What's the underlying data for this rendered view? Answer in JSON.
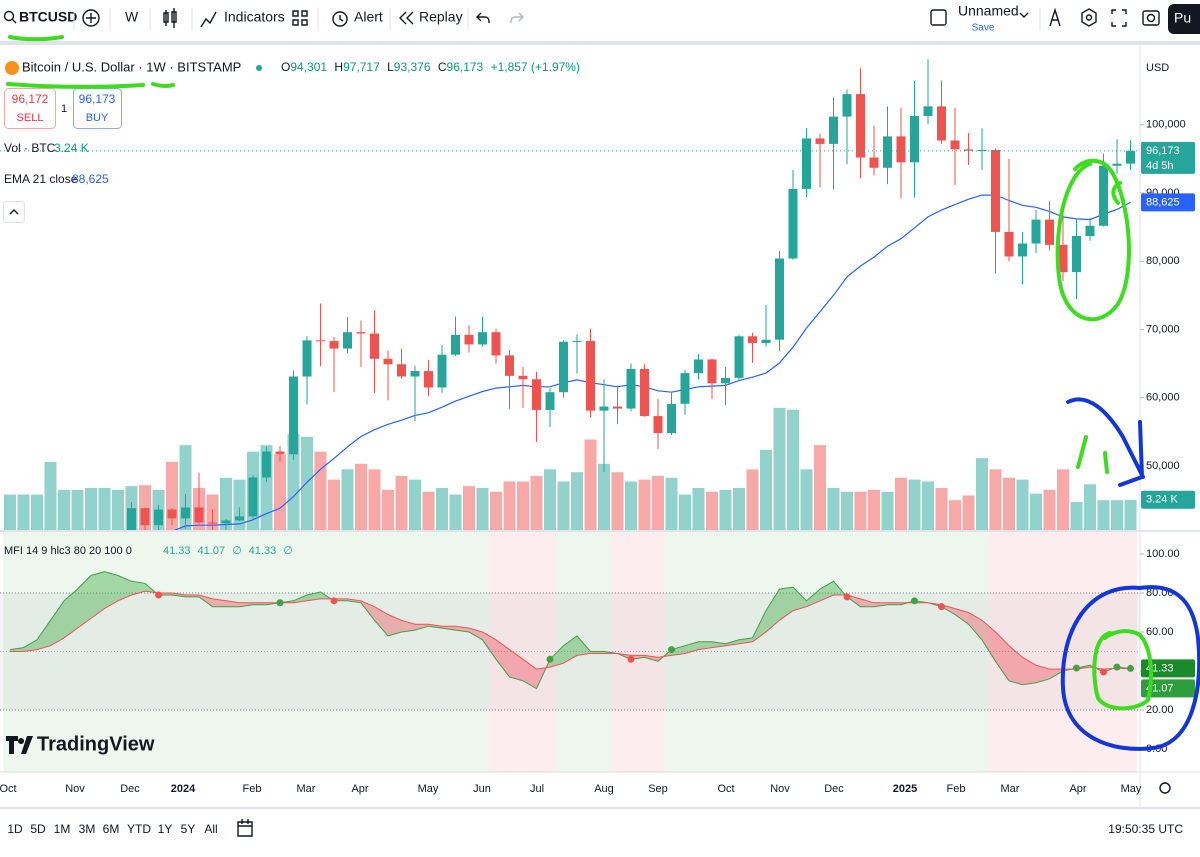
{
  "toolbar": {
    "symbol": "BTCUSD",
    "interval": "W",
    "indicators": "Indicators",
    "alert": "Alert",
    "replay": "Replay",
    "layout_name": "Unnamed",
    "save": "Save",
    "publish": "Pu"
  },
  "legend": {
    "title": "Bitcoin / U.S. Dollar · 1W · BITSTAMP",
    "o_label": "O",
    "open": "94,301",
    "h_label": "H",
    "high": "97,717",
    "l_label": "L",
    "low": "93,376",
    "c_label": "C",
    "close": "96,173",
    "change": "+1,857 (+1.97%)"
  },
  "trade": {
    "sell_price": "96,172",
    "sell": "SELL",
    "quantity": "1",
    "buy_price": "96,173",
    "buy": "BUY"
  },
  "vol_legend": {
    "label": "Vol · BTC",
    "value": "3.24 K"
  },
  "ema_legend": {
    "label": "EMA 21 close",
    "value": "88,625"
  },
  "mfi_legend": {
    "label": "MFI 14 9 hlc3 80 20 100 0",
    "values": [
      "41.33",
      "41.07",
      "∅",
      "41.33",
      "∅"
    ]
  },
  "price_axis": {
    "currency": "USD",
    "tags": {
      "price": "96,173",
      "countdown": "4d 5h",
      "ema": "88,625",
      "volume": "3.24 K",
      "mfi": "41.33",
      "mfi_signal": "41.07"
    }
  },
  "brand": "TradingView",
  "timeframes": [
    "1D",
    "5D",
    "1M",
    "3M",
    "6M",
    "YTD",
    "1Y",
    "5Y",
    "All"
  ],
  "clock": "19:50:35 UTC",
  "chart_data": {
    "type": "candlestick",
    "x_labels": [
      "Oct",
      "Nov",
      "Dec",
      "2024",
      "Feb",
      "Mar",
      "Apr",
      "May",
      "Jun",
      "Jul",
      "Aug",
      "Sep",
      "Oct",
      "Nov",
      "Dec",
      "2025",
      "Feb",
      "Mar",
      "Apr",
      "May"
    ],
    "open": [
      null,
      null,
      null,
      null,
      null,
      null,
      null,
      null,
      null,
      39900,
      43800,
      41300,
      43600,
      42300,
      43900,
      41700,
      41600,
      42000,
      42600,
      48300,
      52100,
      51700,
      63100,
      68400,
      68300,
      67200,
      69600,
      69400,
      65700,
      64900,
      63100,
      63900,
      61500,
      66300,
      69200,
      67800,
      69600,
      66200,
      63200,
      62700,
      58200,
      60800,
      68200,
      68300,
      58100,
      58700,
      58400,
      64200,
      57300,
      54800,
      59100,
      63600,
      65600,
      62100,
      62900,
      69000,
      68000,
      68500,
      80400,
      90600,
      98000,
      97200,
      101200,
      104500,
      95200,
      93700,
      98300,
      94500,
      101300,
      102700,
      97700,
      96400,
      96200,
      96300,
      84300,
      80700,
      82600,
      86100,
      82400,
      78400,
      83700,
      85200,
      94000,
      94301
    ],
    "high": [
      null,
      null,
      null,
      null,
      null,
      null,
      null,
      null,
      null,
      44700,
      43900,
      44300,
      43800,
      45900,
      49000,
      43600,
      42200,
      43900,
      48600,
      52800,
      52900,
      64000,
      69000,
      73800,
      68900,
      71800,
      71300,
      72800,
      66900,
      67200,
      64700,
      65500,
      67700,
      71900,
      70600,
      71900,
      70100,
      67000,
      64500,
      63800,
      61400,
      68400,
      69300,
      70100,
      62700,
      61800,
      65000,
      64900,
      59800,
      60700,
      64100,
      66400,
      65700,
      64500,
      69200,
      69500,
      73600,
      81500,
      93400,
      99500,
      98700,
      104000,
      105200,
      108300,
      99900,
      102700,
      102500,
      106400,
      109600,
      106500,
      102500,
      98800,
      99500,
      96500,
      95000,
      84300,
      87500,
      88800,
      88500,
      86100,
      86400,
      95800,
      97900,
      97717
    ],
    "low": [
      null,
      null,
      null,
      null,
      null,
      null,
      null,
      null,
      null,
      39800,
      40500,
      40600,
      41300,
      40800,
      41500,
      40300,
      38500,
      41900,
      42200,
      47600,
      50600,
      50900,
      59000,
      64600,
      60800,
      66500,
      64500,
      60700,
      59600,
      62800,
      56500,
      60200,
      60700,
      66100,
      66600,
      67500,
      65000,
      58400,
      58500,
      53500,
      55700,
      60000,
      63500,
      57100,
      49100,
      56100,
      58000,
      57200,
      52500,
      54500,
      57500,
      62700,
      59800,
      58900,
      62500,
      65100,
      67500,
      66800,
      80200,
      89400,
      90800,
      90500,
      94200,
      92200,
      92600,
      91300,
      89200,
      89300,
      100100,
      97200,
      91200,
      94100,
      93400,
      78200,
      80000,
      76600,
      81200,
      81600,
      77100,
      74400,
      83000,
      85100,
      92800,
      93376
    ],
    "close": [
      null,
      null,
      null,
      null,
      null,
      null,
      null,
      null,
      null,
      43800,
      41300,
      43600,
      42300,
      43900,
      41700,
      41600,
      42000,
      42600,
      48300,
      52100,
      51700,
      63100,
      68400,
      68300,
      67200,
      69600,
      69400,
      65700,
      64900,
      63100,
      63900,
      61500,
      66300,
      69200,
      67800,
      69600,
      66200,
      63200,
      62700,
      58200,
      60800,
      68200,
      68300,
      58100,
      58700,
      58400,
      64200,
      57300,
      54800,
      59100,
      63600,
      65600,
      62100,
      62900,
      69000,
      68000,
      68500,
      80400,
      90600,
      98000,
      97200,
      101200,
      104500,
      95200,
      93700,
      98300,
      94500,
      101300,
      102700,
      97700,
      96400,
      96200,
      96300,
      84300,
      80700,
      82600,
      86100,
      82400,
      78400,
      83700,
      85200,
      94000,
      94300,
      96173
    ],
    "up_color": "#26a69a",
    "down_color": "#ef5350",
    "ylim": [
      40600,
      111700
    ],
    "yticks": [
      {
        "value": 50000,
        "label": "50,000"
      },
      {
        "value": 60000,
        "label": "60,000"
      },
      {
        "value": 70000,
        "label": "70,000"
      },
      {
        "value": 80000,
        "label": "80,000"
      },
      {
        "value": 90000,
        "label": "90,000"
      },
      {
        "value": 100000,
        "label": "100,000"
      }
    ],
    "ema": {
      "color": "#2962ff",
      "values": [
        null,
        null,
        null,
        null,
        null,
        null,
        null,
        null,
        null,
        38000,
        39000,
        39800,
        40400,
        41200,
        41300,
        41300,
        41400,
        41500,
        42100,
        43000,
        43800,
        45500,
        47600,
        49500,
        51100,
        52800,
        54300,
        55300,
        56100,
        56700,
        57400,
        57800,
        58600,
        59500,
        60200,
        60900,
        61400,
        61600,
        61800,
        61600,
        61600,
        62200,
        62600,
        62200,
        61900,
        61600,
        61900,
        61600,
        61000,
        60800,
        61200,
        61600,
        61700,
        61800,
        62500,
        63000,
        63600,
        65100,
        67400,
        70200,
        72600,
        75000,
        77700,
        79300,
        80600,
        82200,
        83300,
        84900,
        86500,
        87500,
        88300,
        89100,
        89700,
        89700,
        88900,
        88200,
        87900,
        87300,
        86500,
        86200,
        86100,
        86900,
        87600,
        88625
      ]
    },
    "volume": {
      "ylim": [
        0,
        52
      ],
      "values": [
        3.8,
        3.8,
        3.8,
        7.3,
        4.3,
        4.3,
        4.5,
        4.5,
        4.3,
        4.7,
        4.8,
        4.3,
        7.3,
        9.1,
        4.5,
        3.8,
        5.6,
        5.4,
        8.4,
        9.1,
        8.1,
        10.3,
        10.0,
        8.4,
        5.4,
        6.5,
        7.1,
        6.5,
        4.3,
        5.8,
        5.4,
        4.1,
        4.5,
        3.8,
        4.7,
        4.5,
        4.1,
        5.2,
        5.2,
        5.8,
        6.5,
        5.2,
        6.2,
        9.7,
        7.1,
        6.2,
        5.2,
        5.4,
        5.8,
        5.6,
        3.8,
        4.5,
        4.1,
        4.3,
        4.5,
        6.5,
        8.6,
        13.1,
        12.9,
        6.5,
        9.1,
        4.5,
        4.1,
        4.1,
        4.3,
        4.1,
        5.6,
        5.4,
        5.2,
        4.5,
        3.2,
        3.7,
        7.7,
        6.5,
        5.6,
        5.4,
        3.9,
        4.3,
        6.5,
        3.0,
        4.9,
        3.2,
        3.2,
        3.24
      ]
    },
    "mfi": {
      "ylim": [
        -11.8,
        111.3
      ],
      "yticks": [
        {
          "value": 0,
          "label": "0.00"
        },
        {
          "value": 20,
          "label": "20.00"
        },
        {
          "value": 40,
          "label": "40.00"
        },
        {
          "value": 60,
          "label": "60.00"
        },
        {
          "value": 80,
          "label": "80.00"
        },
        {
          "value": 100,
          "label": "100.00"
        }
      ],
      "bands": [
        80,
        20
      ],
      "mid": 50,
      "series": [
        {
          "color": "#43a047",
          "values": [
            51,
            52,
            56,
            66,
            76,
            82,
            89,
            91,
            89,
            86,
            85,
            79,
            79,
            78,
            78,
            73,
            73,
            73,
            74,
            74,
            75,
            76,
            79,
            80.5,
            76,
            76,
            75,
            66,
            58,
            60,
            61,
            63,
            62,
            61,
            60,
            56,
            46,
            37,
            35,
            31,
            46,
            53,
            58,
            50,
            50,
            49,
            46,
            47,
            45,
            51,
            53,
            55,
            55,
            54,
            56,
            57,
            71,
            82,
            83,
            76,
            82,
            86,
            78,
            73,
            73,
            74,
            74,
            76,
            75,
            73,
            69,
            64,
            56,
            45,
            35,
            33,
            34,
            36,
            40,
            41.5,
            43,
            39.5,
            42,
            41.33
          ]
        },
        {
          "color": "#ef5350",
          "values": [
            50,
            50,
            51,
            53,
            57,
            62,
            67,
            72,
            76,
            79,
            81,
            80,
            80,
            79,
            79,
            77,
            76,
            75,
            75,
            75,
            75,
            75,
            76,
            77,
            77,
            77,
            76,
            73,
            69,
            66,
            64,
            64,
            63,
            63,
            62,
            60,
            56,
            51,
            46,
            41,
            42,
            44,
            48,
            49,
            49,
            49,
            48,
            48,
            47,
            48,
            49,
            51,
            52,
            53,
            54,
            55,
            60,
            66,
            71,
            73,
            76,
            79,
            79,
            77,
            75,
            75,
            75,
            75,
            75,
            74,
            72,
            70,
            66,
            60,
            53,
            47,
            43,
            41,
            41,
            41,
            42,
            41,
            41.5,
            41.07
          ]
        }
      ]
    }
  }
}
